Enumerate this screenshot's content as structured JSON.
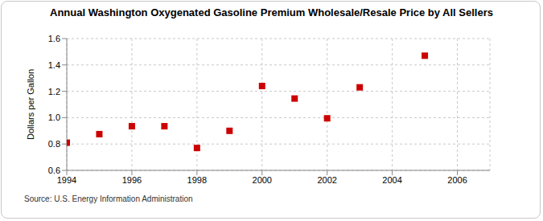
{
  "chart_data": {
    "type": "scatter",
    "title": "Annual Washington Oxygenated Gasoline Premium Wholesale/Resale Price by All Sellers",
    "y_label": "Dollars per Gallon",
    "annotation": "Source: U.S. Energy Information Administration",
    "x": [
      1994,
      1995,
      1996,
      1997,
      1998,
      1999,
      2000,
      2001,
      2002,
      2003,
      2005
    ],
    "values": [
      0.81,
      0.875,
      0.935,
      0.935,
      0.77,
      0.9,
      1.24,
      1.145,
      0.995,
      1.23,
      1.47
    ],
    "color": "#cc0000",
    "marker": "square",
    "xlim": [
      1994,
      2007
    ],
    "xticks": [
      1994,
      1996,
      1998,
      2000,
      2002,
      2004,
      2006
    ],
    "ylim": [
      0.6,
      1.6
    ],
    "yticks": [
      0.6,
      0.8,
      {
        "value": 1,
        "label": "1.0"
      },
      1.2,
      1.4,
      1.6
    ],
    "grid": true
  }
}
